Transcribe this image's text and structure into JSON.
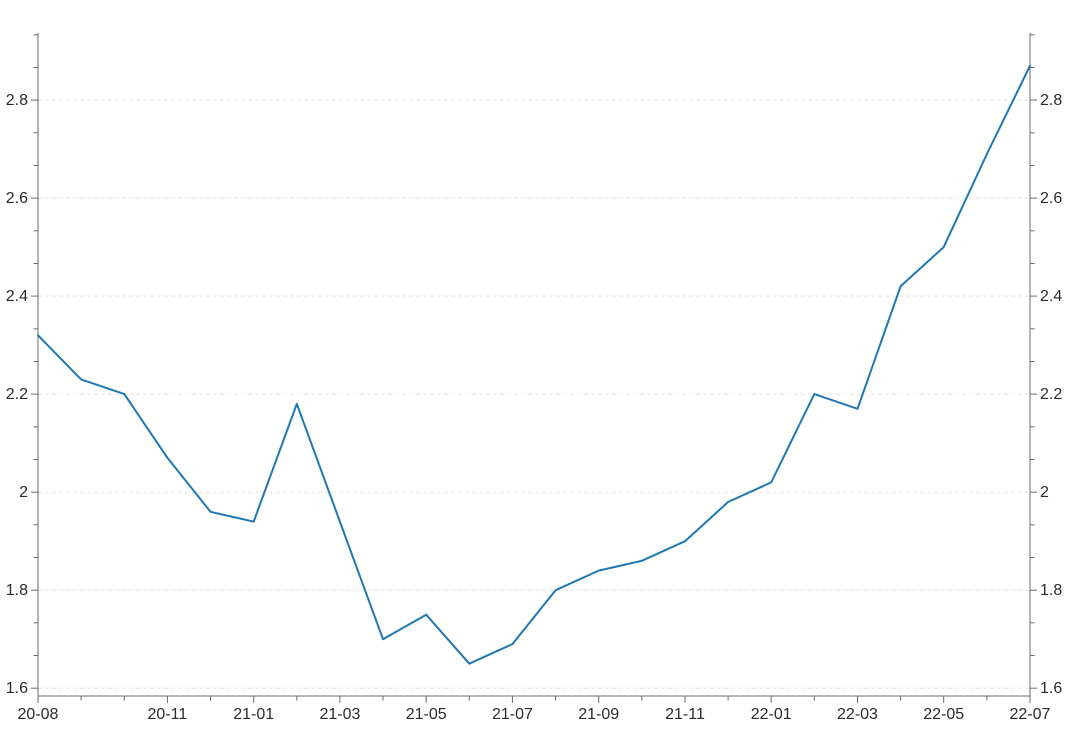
{
  "chart_data": {
    "type": "line",
    "title": "",
    "xlabel": "",
    "ylabel": "",
    "categories": [
      "20-08",
      "20-09",
      "20-10",
      "20-11",
      "20-12",
      "21-01",
      "21-02",
      "21-03",
      "21-04",
      "21-05",
      "21-06",
      "21-07",
      "21-08",
      "21-09",
      "21-10",
      "21-11",
      "21-12",
      "22-01",
      "22-02",
      "22-03",
      "22-04",
      "22-05",
      "22-06",
      "22-07"
    ],
    "series": [
      {
        "name": "value",
        "color": "#1f77b4",
        "values": [
          2.32,
          2.23,
          2.2,
          2.07,
          1.96,
          1.94,
          2.18,
          1.94,
          1.7,
          1.75,
          1.65,
          1.69,
          1.8,
          1.84,
          1.86,
          1.9,
          1.98,
          2.02,
          2.2,
          2.17,
          2.42,
          2.5,
          2.69,
          2.87
        ]
      }
    ],
    "ylim": [
      1.584,
      2.937
    ],
    "yticks_major": [
      1.6,
      1.8,
      2.0,
      2.2,
      2.4,
      2.6,
      2.8
    ],
    "ytick_labels": [
      "1.6",
      "1.8",
      "2",
      "2.2",
      "2.4",
      "2.6",
      "2.8"
    ],
    "y_minor_subdivisions": 3,
    "x_major_tick_indices": [
      0,
      3,
      5,
      7,
      9,
      11,
      13,
      15,
      17,
      19,
      21,
      23
    ],
    "x_major_tick_labels": [
      "20-08",
      "20-11",
      "21-01",
      "21-03",
      "21-05",
      "21-07",
      "21-09",
      "21-11",
      "22-01",
      "22-03",
      "22-05",
      "22-07"
    ],
    "grid": "horizontal-dashed",
    "legend_position": "none",
    "axes": {
      "left": true,
      "right": true,
      "bottom": true,
      "top": false
    }
  },
  "style": {
    "line_color": "#1f77b4",
    "grid_color": "#e0e0e0",
    "axis_color": "#6b6b6b",
    "tick_label_color": "#2b2b2b"
  }
}
